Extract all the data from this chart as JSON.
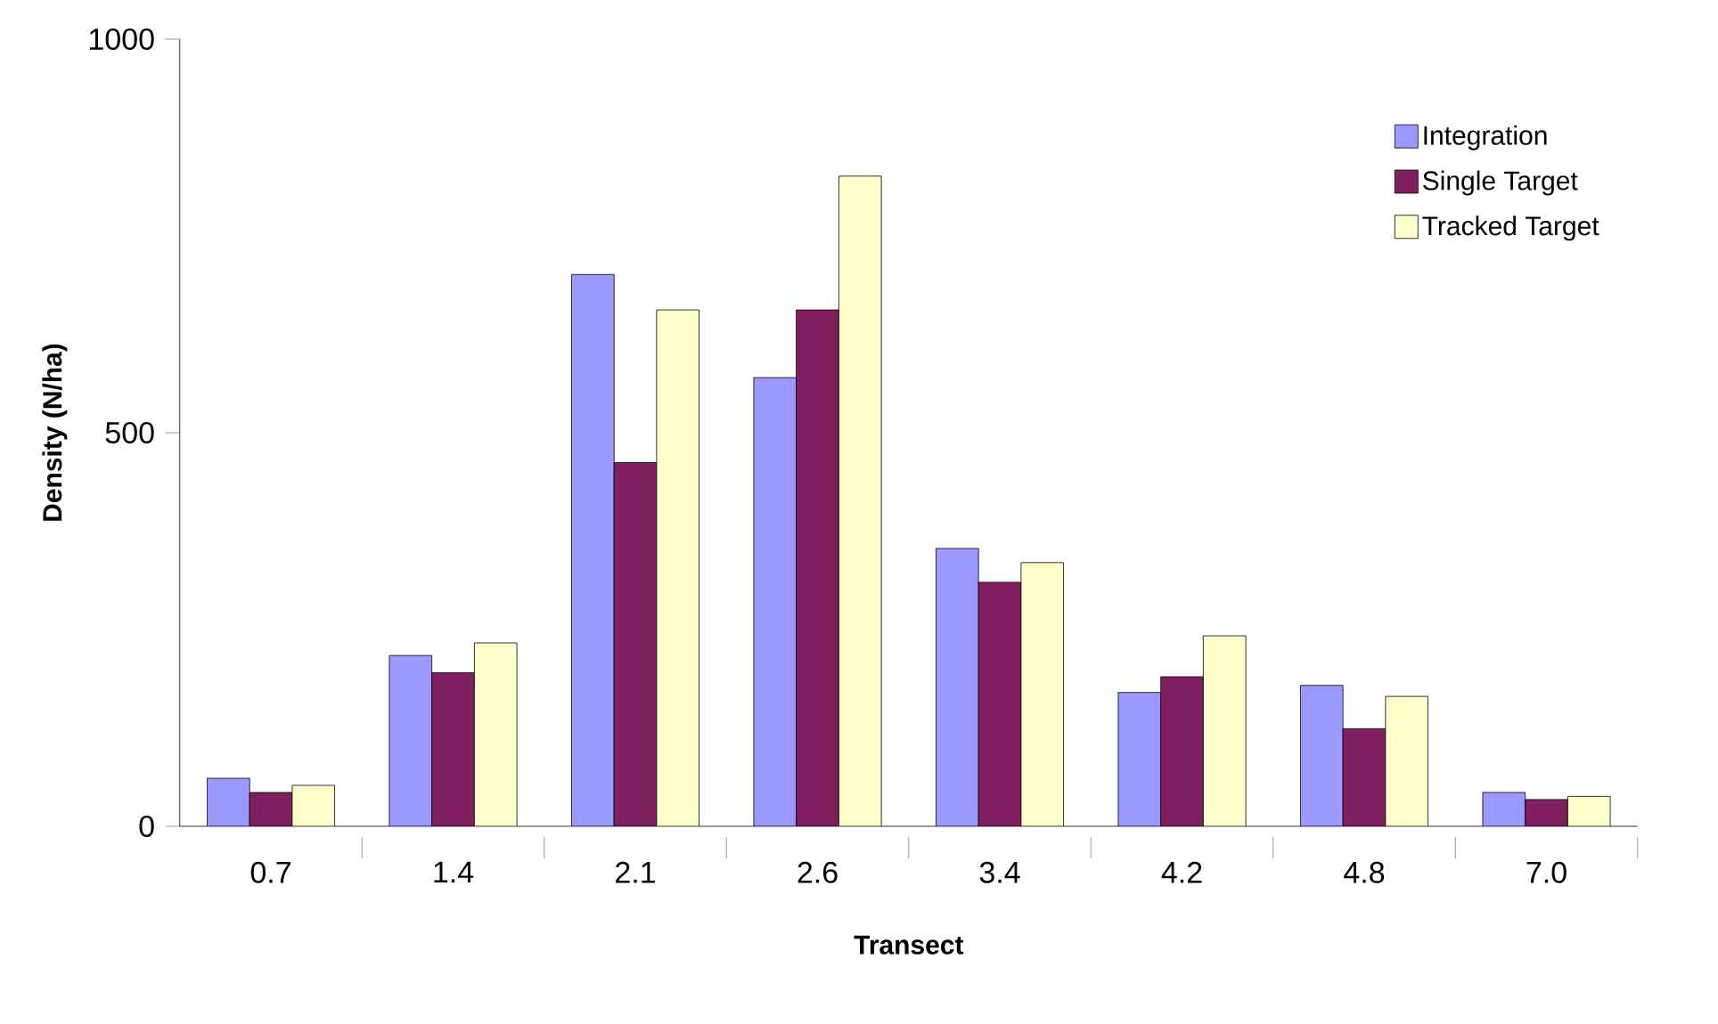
{
  "chart_data": {
    "type": "bar",
    "xlabel": "Transect",
    "ylabel": "Density (N/ha)",
    "categories": [
      "0.7",
      "1.4",
      "2.1",
      "2.6",
      "3.4",
      "4.2",
      "4.8",
      "7.0"
    ],
    "series": [
      {
        "name": "Integration",
        "color": "#9999ff",
        "values": [
          61,
          217,
          701,
          570,
          353,
          170,
          179,
          43
        ]
      },
      {
        "name": "Single Target",
        "color": "#7f1f5f",
        "values": [
          43,
          195,
          462,
          656,
          310,
          190,
          124,
          34
        ]
      },
      {
        "name": "Tracked Target",
        "color": "#ffffcc",
        "values": [
          52,
          233,
          656,
          826,
          335,
          242,
          165,
          38
        ]
      }
    ],
    "ylim": [
      0,
      1000
    ],
    "yticks": [
      0,
      500,
      1000
    ],
    "grid": false,
    "legend": "top right"
  }
}
